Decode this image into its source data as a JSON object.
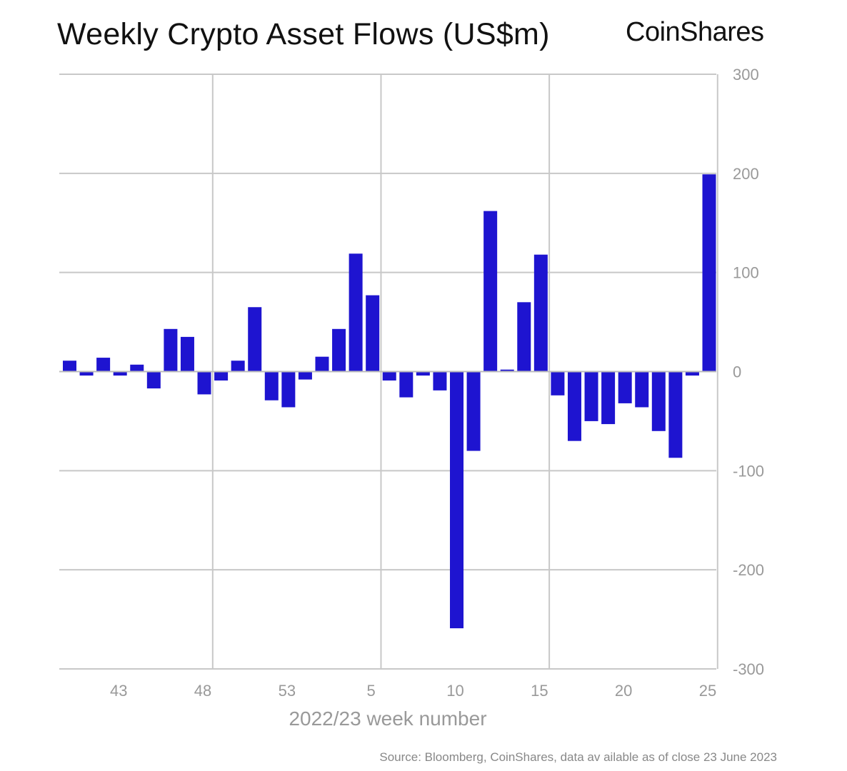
{
  "chart_data": {
    "type": "bar",
    "title": "Weekly Crypto Asset Flows (US$m)",
    "logo": "CoinShares",
    "xlabel": "2022/23 week number",
    "ylabel": "",
    "source": "Source: Bloomberg, CoinShares, data av ailable as of close 23 June 2023",
    "categories": [
      "40",
      "41",
      "42",
      "43",
      "44",
      "45",
      "46",
      "47",
      "48",
      "49",
      "50",
      "51",
      "52",
      "53",
      "1",
      "2",
      "3",
      "4",
      "5",
      "6",
      "7",
      "8",
      "9",
      "10",
      "11",
      "12",
      "13",
      "14",
      "15",
      "16",
      "17",
      "18",
      "19",
      "20",
      "21",
      "22",
      "23",
      "24",
      "25"
    ],
    "values": [
      11,
      -4,
      14,
      -4,
      7,
      -17,
      43,
      35,
      -23,
      -9,
      11,
      65,
      -29,
      -36,
      -8,
      15,
      43,
      119,
      77,
      -9,
      -26,
      -4,
      -19,
      -259,
      -80,
      162,
      2,
      70,
      118,
      -24,
      -70,
      -50,
      -53,
      -32,
      -36,
      -60,
      -87,
      -4,
      199
    ],
    "x_tick_labels": [
      "43",
      "48",
      "53",
      "5",
      "10",
      "15",
      "20",
      "25"
    ],
    "y_tick_labels": [
      "300",
      "200",
      "100",
      "0",
      "-100",
      "-200",
      "-300"
    ],
    "ylim": [
      -300,
      300
    ],
    "y_axis_position": "right",
    "grid": true,
    "bar_color": "#1e14d0"
  }
}
